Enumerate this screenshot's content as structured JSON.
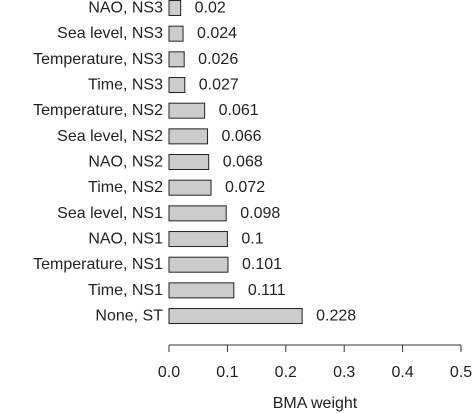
{
  "chart_data": {
    "type": "bar",
    "orientation": "horizontal",
    "categories": [
      "NAO, NS3",
      "Sea level, NS3",
      "Temperature, NS3",
      "Time, NS3",
      "Temperature, NS2",
      "Sea level, NS2",
      "NAO, NS2",
      "Time, NS2",
      "Sea level, NS1",
      "NAO, NS1",
      "Temperature, NS1",
      "Time, NS1",
      "None, ST"
    ],
    "values": [
      0.02,
      0.024,
      0.026,
      0.027,
      0.061,
      0.066,
      0.068,
      0.072,
      0.098,
      0.1,
      0.101,
      0.111,
      0.228
    ],
    "value_labels": [
      "0.02",
      "0.024",
      "0.026",
      "0.027",
      "0.061",
      "0.066",
      "0.068",
      "0.072",
      "0.098",
      "0.1",
      "0.101",
      "0.111",
      "0.228"
    ],
    "xlabel": "BMA weight",
    "ylabel": "",
    "xlim": [
      0,
      0.5
    ],
    "x_ticks": [
      0.0,
      0.1,
      0.2,
      0.3,
      0.4,
      0.5
    ],
    "x_tick_labels": [
      "0.0",
      "0.1",
      "0.2",
      "0.3",
      "0.4",
      "0.5"
    ],
    "grid": false,
    "bar_color": "#cccccc",
    "edge_color": "#222222"
  }
}
